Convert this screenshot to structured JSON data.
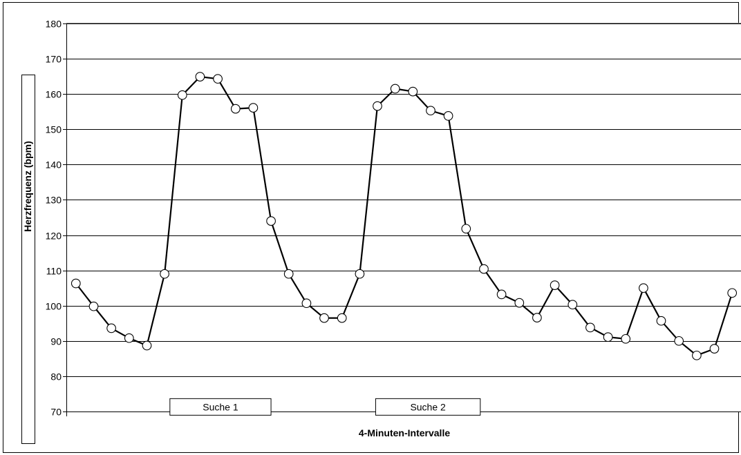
{
  "chart_data": {
    "type": "line",
    "title": "",
    "xlabel": "4-Minuten-Intervalle",
    "ylabel": "Herzfrequenz (bpm)",
    "ylim": [
      70,
      180
    ],
    "yticks": [
      70,
      80,
      90,
      100,
      110,
      120,
      130,
      140,
      150,
      160,
      170,
      180
    ],
    "grid": true,
    "legend": "none",
    "x": [
      1,
      2,
      3,
      4,
      5,
      6,
      7,
      8,
      9,
      10,
      11,
      12,
      13,
      14,
      15,
      16,
      17,
      18,
      19,
      20,
      21,
      22,
      23,
      24,
      25,
      26,
      27,
      28,
      29,
      30,
      31,
      32,
      33,
      34,
      35,
      36,
      37,
      38
    ],
    "series": [
      {
        "values": [
          106.3,
          99.8,
          93.6,
          90.8,
          88.7,
          109.0,
          159.7,
          164.9,
          164.3,
          155.8,
          156.1,
          124.0,
          109.0,
          100.7,
          96.5,
          96.5,
          109.0,
          156.6,
          161.5,
          160.7,
          155.3,
          153.8,
          121.8,
          110.4,
          103.2,
          100.8,
          96.6,
          105.8,
          100.3,
          93.8,
          91.1,
          90.6,
          105.0,
          95.7,
          90.0,
          85.9,
          87.8,
          103.6
        ],
        "line_color": "#000000",
        "marker": "circle",
        "marker_fill": "#ffffff"
      }
    ],
    "annotations": [
      {
        "text": "Suche 1",
        "x_from": 6.3,
        "x_to": 12.0,
        "y": 71.3
      },
      {
        "text": "Suche 2",
        "x_from": 17.9,
        "x_to": 23.8,
        "y": 71.3
      }
    ]
  }
}
